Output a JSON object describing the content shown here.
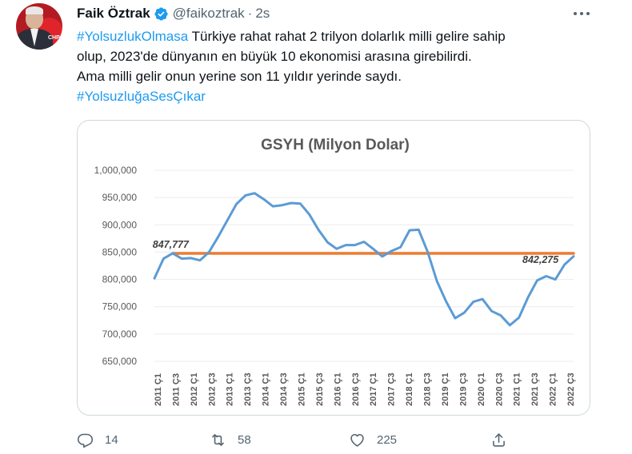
{
  "tweet": {
    "author_name": "Faik Öztrak",
    "handle": "@faikoztrak",
    "separator": "·",
    "time": "2s",
    "lines": [
      {
        "hashtag": "#YolsuzlukOlmasa",
        "text": " Türkiye rahat rahat 2 trilyon dolarlık milli gelire sahip"
      },
      {
        "hashtag": "",
        "text": "olup, 2023'de dünyanın en büyük 10 ekonomisi arasına girebilirdi."
      },
      {
        "hashtag": "",
        "text": "Ama milli gelir onun yerine son 11 yıldır yerinde saydı."
      },
      {
        "hashtag": "#YolsuzluğaSesÇıkar",
        "text": ""
      }
    ],
    "avatar_logo": "CHP"
  },
  "actions": {
    "reply_count": "14",
    "retweet_count": "58",
    "like_count": "225"
  },
  "icons": {
    "verified": "verified-badge-icon",
    "more": "more-options-icon",
    "reply": "reply-icon",
    "retweet": "retweet-icon",
    "like": "like-icon",
    "share": "share-icon"
  },
  "colors": {
    "hashtag": "#1d9bf0",
    "verified": "#1d9bf0",
    "series_line": "#5b9bd5",
    "reference_line": "#ed7d31",
    "muted": "#536471"
  },
  "chart_data": {
    "type": "line",
    "title": "GSYH (Milyon Dolar)",
    "ylim": [
      650000,
      1000000
    ],
    "y_ticks": [
      "1,000,000",
      "950,000",
      "900,000",
      "850,000",
      "800,000",
      "750,000",
      "700,000",
      "650,000"
    ],
    "y_tick_values": [
      1000000,
      950000,
      900000,
      850000,
      800000,
      750000,
      700000,
      650000
    ],
    "x_tick_labels": [
      "2011 Ç1",
      "2011 Ç3",
      "2012 Ç1",
      "2012 Ç3",
      "2013 Ç1",
      "2013 Ç3",
      "2014 Ç1",
      "2014 Ç3",
      "2015 Ç1",
      "2015 Ç3",
      "2016 Ç1",
      "2016 Ç3",
      "2017 Ç1",
      "2017 Ç3",
      "2018 Ç1",
      "2018 Ç3",
      "2019 Ç1",
      "2019 Ç3",
      "2020 Ç1",
      "2020 Ç3",
      "2021 Ç1",
      "2021 Ç3",
      "2022 Ç1",
      "2022 Ç3"
    ],
    "series": [
      {
        "values": [
          802000,
          838000,
          847777,
          838000,
          839000,
          835000,
          850000,
          878000,
          908000,
          938000,
          954000,
          958000,
          947000,
          934000,
          936000,
          940000,
          939000,
          919000,
          891000,
          868000,
          856000,
          863000,
          863000,
          869000,
          856000,
          842000,
          852000,
          859000,
          890000,
          891000,
          850000,
          797000,
          760000,
          729000,
          739000,
          759000,
          764000,
          742000,
          734000,
          716000,
          730000,
          767000,
          798000,
          806000,
          800000,
          827000,
          842275
        ]
      }
    ],
    "reference_value": 847777,
    "annotations": [
      {
        "label": "847,777",
        "value": 847777
      },
      {
        "label": "842,275",
        "value": 842275
      }
    ]
  }
}
